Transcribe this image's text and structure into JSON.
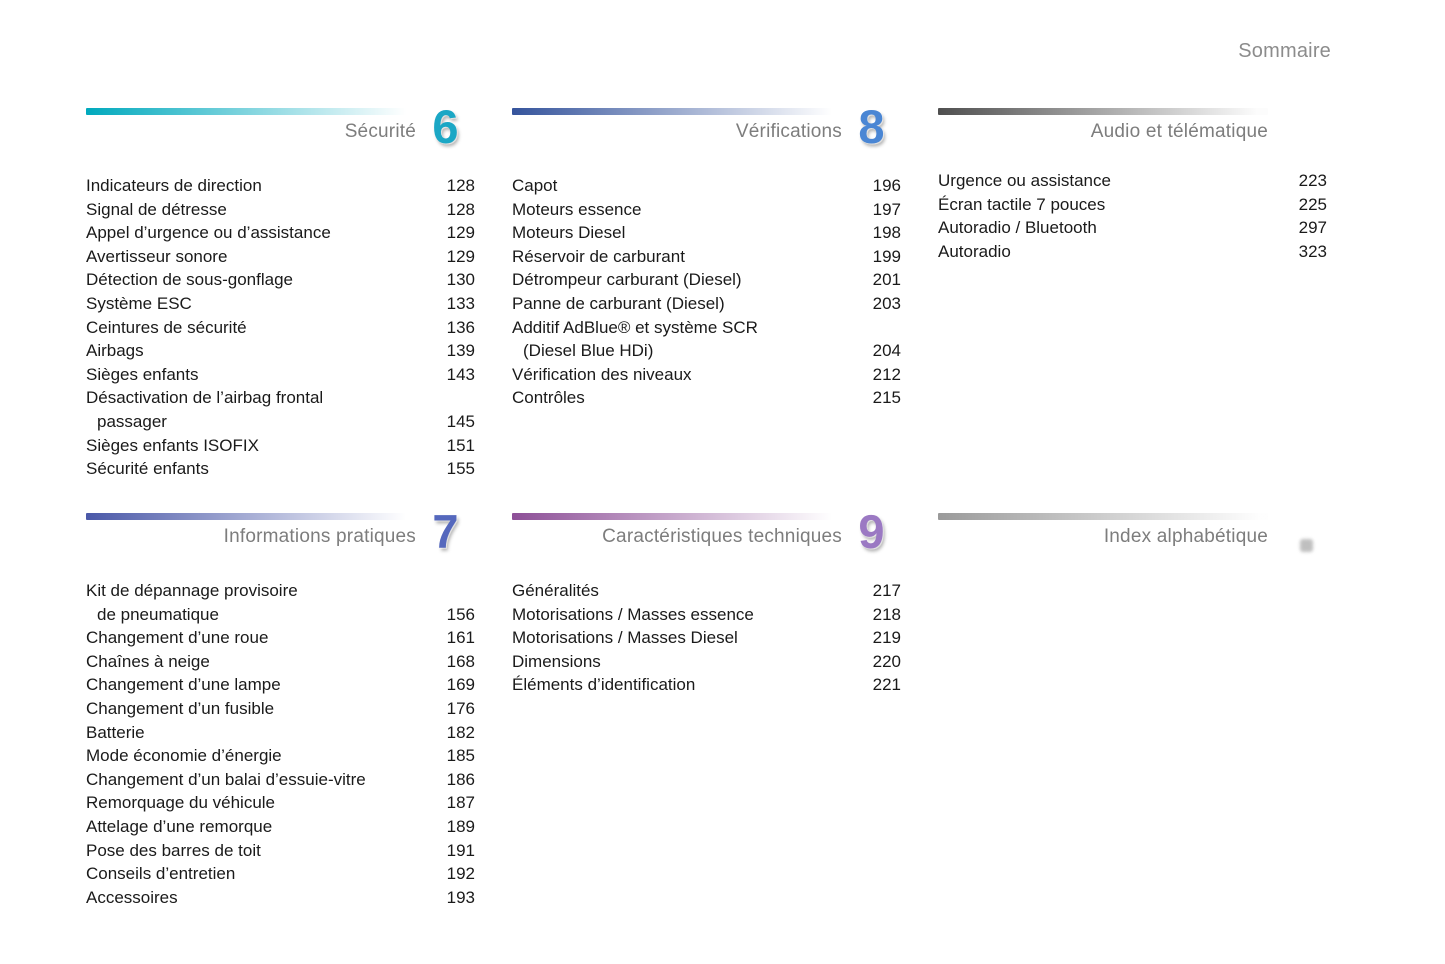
{
  "page": {
    "title": "Sommaire"
  },
  "sections": [
    {
      "id": "securite",
      "number": "6",
      "title": "Sécurité",
      "number_color": "#1ba7c5",
      "bar_from": "#00a9bd",
      "bar_to": "rgba(255,255,255,0)",
      "entries": [
        {
          "lines": [
            "Indicateurs de direction"
          ],
          "page": "128"
        },
        {
          "lines": [
            "Signal de détresse"
          ],
          "page": "128"
        },
        {
          "lines": [
            "Appel d’urgence ou d’assistance"
          ],
          "page": "129"
        },
        {
          "lines": [
            "Avertisseur sonore"
          ],
          "page": "129"
        },
        {
          "lines": [
            "Détection de sous-gonflage"
          ],
          "page": "130"
        },
        {
          "lines": [
            "Système ESC"
          ],
          "page": "133"
        },
        {
          "lines": [
            "Ceintures de sécurité"
          ],
          "page": "136"
        },
        {
          "lines": [
            "Airbags"
          ],
          "page": "139"
        },
        {
          "lines": [
            "Sièges enfants"
          ],
          "page": "143"
        },
        {
          "lines": [
            "Désactivation de l’airbag frontal",
            "passager"
          ],
          "page": "145"
        },
        {
          "lines": [
            "Sièges enfants ISOFIX"
          ],
          "page": "151"
        },
        {
          "lines": [
            "Sécurité enfants"
          ],
          "page": "155"
        }
      ]
    },
    {
      "id": "verifications",
      "number": "8",
      "title": "Vérifications",
      "number_color": "#4a86d4",
      "bar_from": "#35549c",
      "bar_to": "rgba(255,255,255,0)",
      "entries": [
        {
          "lines": [
            "Capot"
          ],
          "page": "196"
        },
        {
          "lines": [
            "Moteurs essence"
          ],
          "page": "197"
        },
        {
          "lines": [
            "Moteurs Diesel"
          ],
          "page": "198"
        },
        {
          "lines": [
            "Réservoir de carburant"
          ],
          "page": "199"
        },
        {
          "lines": [
            "Détrompeur carburant (Diesel)"
          ],
          "page": "201"
        },
        {
          "lines": [
            "Panne de carburant (Diesel)"
          ],
          "page": "203"
        },
        {
          "lines": [
            "Additif AdBlue® et système SCR",
            "(Diesel Blue HDi)"
          ],
          "page": "204"
        },
        {
          "lines": [
            "Vérification des niveaux"
          ],
          "page": "212"
        },
        {
          "lines": [
            "Contrôles"
          ],
          "page": "215"
        }
      ]
    },
    {
      "id": "audio-telematique",
      "number": "",
      "title": "Audio et télématique",
      "number_color": "#888888",
      "bar_from": "#4f4f4f",
      "bar_to": "rgba(230,230,230,0.1)",
      "entries": [
        {
          "lines": [
            "Urgence ou assistance"
          ],
          "page": "223"
        },
        {
          "lines": [
            "Écran tactile 7 pouces"
          ],
          "page": "225"
        },
        {
          "lines": [
            "Autoradio / Bluetooth"
          ],
          "page": "297"
        },
        {
          "lines": [
            "Autoradio"
          ],
          "page": "323"
        }
      ]
    },
    {
      "id": "informations-pratiques",
      "number": "7",
      "title": "Informations pratiques",
      "number_color": "#5568bd",
      "bar_from": "#4a58a8",
      "bar_to": "rgba(255,255,255,0)",
      "entries": [
        {
          "lines": [
            "Kit de dépannage provisoire",
            "de pneumatique"
          ],
          "page": "156"
        },
        {
          "lines": [
            "Changement d’une roue"
          ],
          "page": "161"
        },
        {
          "lines": [
            "Chaînes à neige"
          ],
          "page": "168"
        },
        {
          "lines": [
            "Changement d’une lampe"
          ],
          "page": "169"
        },
        {
          "lines": [
            "Changement d’un fusible"
          ],
          "page": "176"
        },
        {
          "lines": [
            "Batterie"
          ],
          "page": "182"
        },
        {
          "lines": [
            "Mode économie d’énergie"
          ],
          "page": "185"
        },
        {
          "lines": [
            "Changement d’un balai d’essuie-vitre"
          ],
          "page": "186"
        },
        {
          "lines": [
            "Remorquage du véhicule"
          ],
          "page": "187"
        },
        {
          "lines": [
            "Attelage d’une remorque"
          ],
          "page": "189"
        },
        {
          "lines": [
            "Pose des barres de toit"
          ],
          "page": "191"
        },
        {
          "lines": [
            "Conseils d’entretien"
          ],
          "page": "192"
        },
        {
          "lines": [
            "Accessoires"
          ],
          "page": "193"
        }
      ]
    },
    {
      "id": "caracteristiques-techniques",
      "number": "9",
      "title": "Caractéristiques techniques",
      "number_color": "#9b79c3",
      "bar_from": "#8d4f97",
      "bar_to": "rgba(255,255,255,0)",
      "entries": [
        {
          "lines": [
            "Généralités"
          ],
          "page": "217"
        },
        {
          "lines": [
            "Motorisations / Masses essence"
          ],
          "page": "218"
        },
        {
          "lines": [
            "Motorisations / Masses Diesel"
          ],
          "page": "219"
        },
        {
          "lines": [
            "Dimensions"
          ],
          "page": "220"
        },
        {
          "lines": [
            "Éléments d’identification"
          ],
          "page": "221"
        }
      ]
    },
    {
      "id": "index-alphabetique",
      "number": "",
      "title": "Index alphabétique",
      "number_color": "#999999",
      "bar_from": "#9a9a9a",
      "bar_to": "rgba(240,240,240,0.1)",
      "has_marker_dot": true,
      "entries": []
    }
  ]
}
